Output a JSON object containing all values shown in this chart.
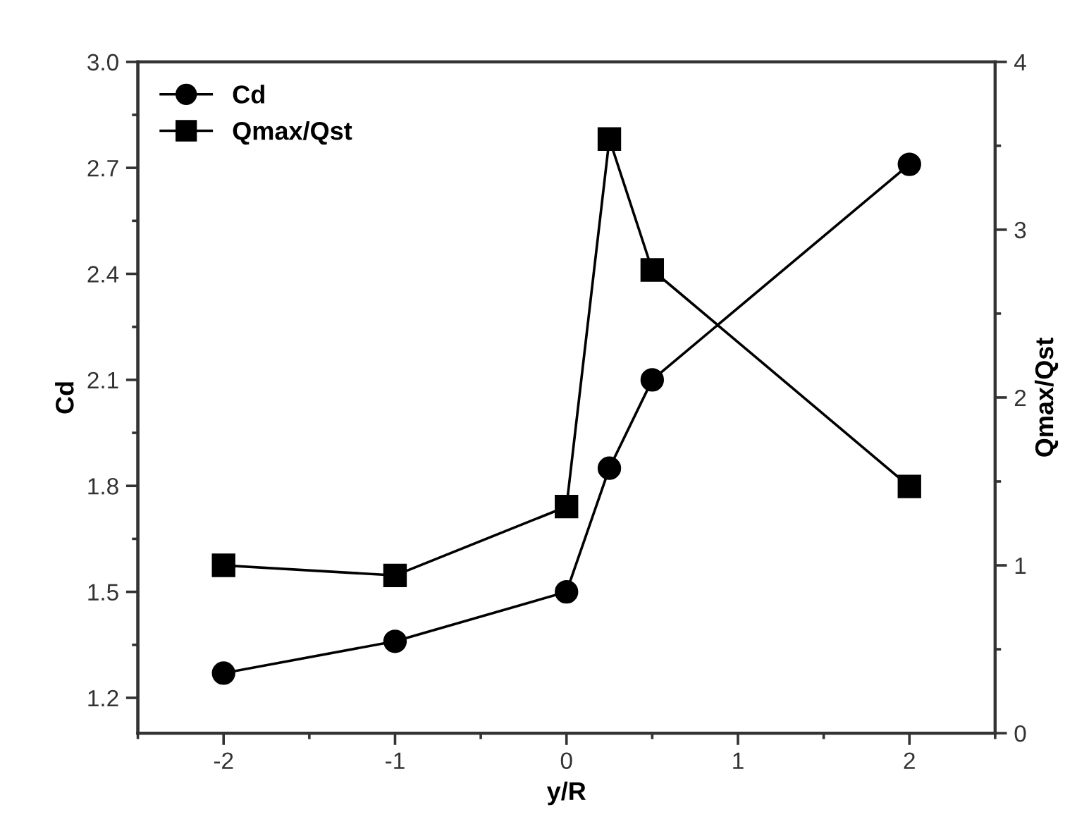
{
  "chart_data": {
    "type": "line",
    "xlabel": "y/R",
    "ylabel": "Cd",
    "y2label": "Qmax/Qst",
    "x": [
      -2,
      -1,
      0,
      0.25,
      0.5,
      2
    ],
    "series": [
      {
        "name": "Cd",
        "color": "#000000",
        "marker": "circle",
        "values": [
          1.27,
          1.36,
          1.5,
          1.85,
          2.1,
          2.71
        ]
      },
      {
        "name": "Qmax/Qst",
        "color": "#000000",
        "marker": "square",
        "axis": "y2",
        "values": [
          1.0,
          0.94,
          1.35,
          3.54,
          2.76,
          1.47
        ]
      }
    ],
    "xlim": [
      -2.5,
      2.5
    ],
    "xticks": [
      {
        "value": -2.5,
        "label": null
      },
      -2,
      {
        "value": -1.5,
        "label": null
      },
      -1,
      {
        "value": -0.5,
        "label": null
      },
      0,
      {
        "value": 0.5,
        "label": null
      },
      1,
      {
        "value": 1.5,
        "label": null
      },
      2,
      {
        "value": 2.5,
        "label": null
      }
    ],
    "ylim": [
      1.1,
      3.0
    ],
    "yticks": [
      {
        "value": 1.2,
        "label": "1.2"
      },
      {
        "value": 1.35,
        "label": null
      },
      {
        "value": 1.5,
        "label": "1.5"
      },
      {
        "value": 1.65,
        "label": null
      },
      {
        "value": 1.8,
        "label": "1.8"
      },
      {
        "value": 1.95,
        "label": null
      },
      {
        "value": 2.1,
        "label": "2.1"
      },
      {
        "value": 2.25,
        "label": null
      },
      {
        "value": 2.4,
        "label": "2.4"
      },
      {
        "value": 2.55,
        "label": null
      },
      {
        "value": 2.7,
        "label": "2.7"
      },
      {
        "value": 2.85,
        "label": null
      },
      {
        "value": 3.0,
        "label": "3.0"
      }
    ],
    "y2lim": [
      0,
      4
    ],
    "y2ticks": [
      0,
      {
        "value": 0.5,
        "label": null
      },
      1,
      {
        "value": 1.5,
        "label": null
      },
      2,
      {
        "value": 2.5,
        "label": null
      },
      3,
      {
        "value": 3.5,
        "label": null
      },
      4
    ],
    "legend": "top left",
    "grid": false,
    "line_style": "solid"
  }
}
